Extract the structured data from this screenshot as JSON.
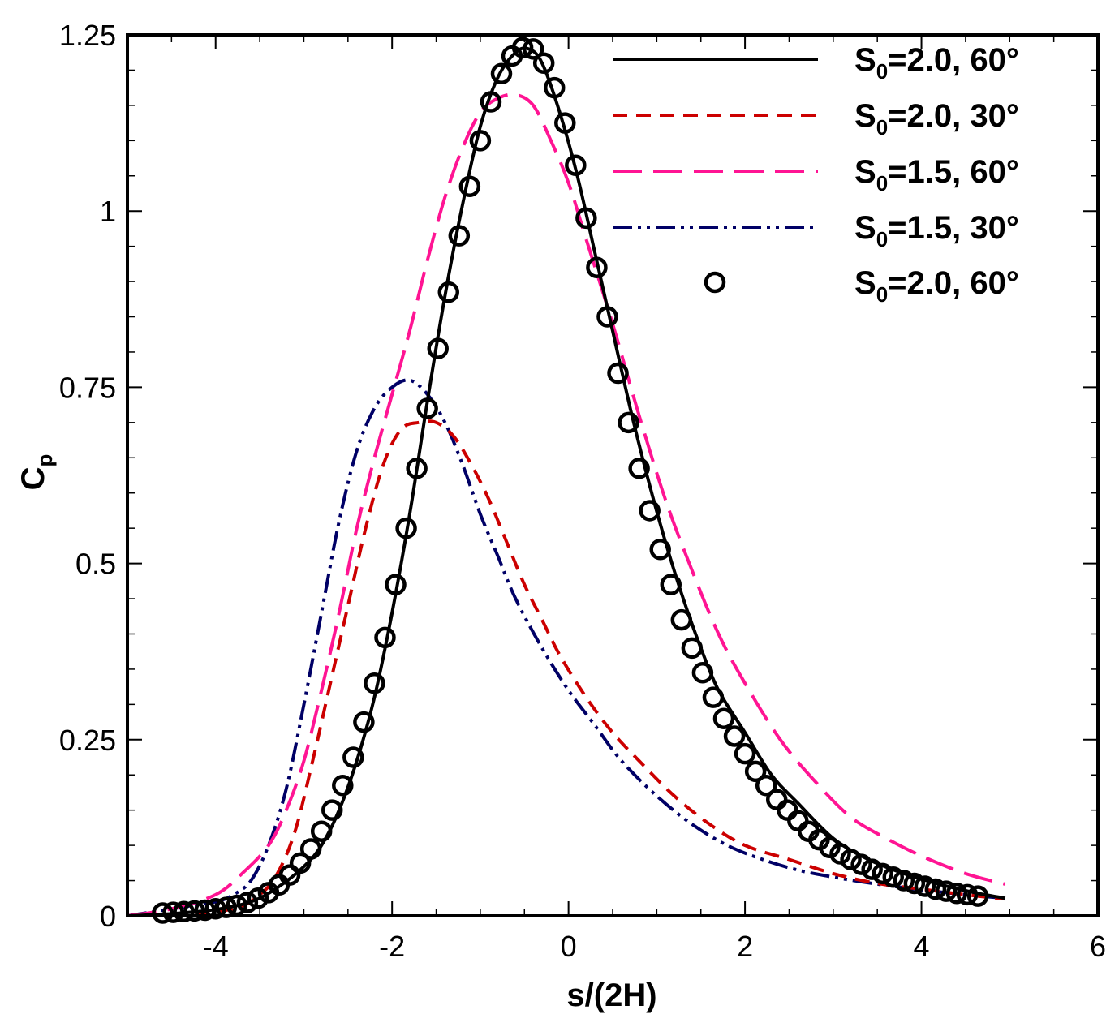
{
  "chart_data": {
    "type": "line",
    "title": "",
    "xlabel": "s/(2H)",
    "ylabel": {
      "main": "C",
      "sub": "p"
    },
    "xlim": [
      -5,
      6
    ],
    "ylim": [
      0,
      1.25
    ],
    "xticks": [
      -4,
      -2,
      0,
      2,
      4,
      6
    ],
    "xtick_labels": [
      "-4",
      "-2",
      "0",
      "2",
      "4",
      "6"
    ],
    "yticks": [
      0,
      0.25,
      0.5,
      0.75,
      1,
      1.25
    ],
    "ytick_labels": [
      "0",
      "0.25",
      "0.5",
      "0.75",
      "1",
      "1.25"
    ],
    "grid": false,
    "legend_position": "top-right",
    "series": [
      {
        "name": "S0=2.0, 60° (line)",
        "label": {
          "pre": "S",
          "sub": "0",
          "post": "=2.0, 60°"
        },
        "style": "solid",
        "color": "#000000",
        "x": [
          -5.0,
          -4.5,
          -4.0,
          -3.6,
          -3.3,
          -3.0,
          -2.8,
          -2.6,
          -2.4,
          -2.2,
          -2.0,
          -1.8,
          -1.6,
          -1.4,
          -1.2,
          -1.0,
          -0.8,
          -0.6,
          -0.45,
          -0.3,
          -0.1,
          0.1,
          0.3,
          0.5,
          0.7,
          0.9,
          1.1,
          1.3,
          1.5,
          1.7,
          2.0,
          2.3,
          2.6,
          3.0,
          3.4,
          3.8,
          4.2,
          4.6,
          4.95
        ],
        "y": [
          0.0,
          0.003,
          0.009,
          0.02,
          0.04,
          0.07,
          0.1,
          0.15,
          0.22,
          0.31,
          0.43,
          0.57,
          0.73,
          0.88,
          1.01,
          1.12,
          1.19,
          1.225,
          1.23,
          1.21,
          1.14,
          1.05,
          0.94,
          0.83,
          0.72,
          0.62,
          0.53,
          0.45,
          0.38,
          0.32,
          0.26,
          0.2,
          0.16,
          0.11,
          0.08,
          0.06,
          0.045,
          0.033,
          0.025
        ]
      },
      {
        "name": "S0=2.0, 30°",
        "label": {
          "pre": "S",
          "sub": "0",
          "post": "=2.0, 30°"
        },
        "style": "dashed",
        "color": "#cc0000",
        "x": [
          -4.5,
          -3.8,
          -3.5,
          -3.3,
          -3.1,
          -2.9,
          -2.7,
          -2.5,
          -2.3,
          -2.1,
          -1.9,
          -1.7,
          -1.5,
          -1.3,
          -1.1,
          -0.9,
          -0.7,
          -0.5,
          -0.3,
          -0.1,
          0.2,
          0.5,
          0.8,
          1.2,
          1.6,
          2.0,
          2.5,
          3.0,
          3.5,
          4.0,
          4.5,
          4.95
        ],
        "y": [
          0.0,
          0.01,
          0.03,
          0.06,
          0.12,
          0.22,
          0.33,
          0.44,
          0.55,
          0.64,
          0.69,
          0.7,
          0.7,
          0.68,
          0.64,
          0.59,
          0.53,
          0.47,
          0.42,
          0.37,
          0.31,
          0.26,
          0.22,
          0.17,
          0.13,
          0.1,
          0.08,
          0.06,
          0.046,
          0.038,
          0.03,
          0.024
        ]
      },
      {
        "name": "S0=1.5, 60°",
        "label": {
          "pre": "S",
          "sub": "0",
          "post": "=1.5, 60°"
        },
        "style": "longdash",
        "color": "#ff1493",
        "x": [
          -5.0,
          -4.5,
          -4.0,
          -3.7,
          -3.4,
          -3.2,
          -3.0,
          -2.8,
          -2.6,
          -2.4,
          -2.2,
          -2.0,
          -1.8,
          -1.6,
          -1.4,
          -1.2,
          -1.0,
          -0.8,
          -0.6,
          -0.4,
          -0.2,
          0.0,
          0.2,
          0.5,
          0.8,
          1.1,
          1.4,
          1.7,
          2.0,
          2.4,
          2.8,
          3.2,
          3.6,
          4.0,
          4.5,
          4.95
        ],
        "y": [
          0.0,
          0.01,
          0.03,
          0.06,
          0.1,
          0.15,
          0.22,
          0.32,
          0.43,
          0.55,
          0.65,
          0.74,
          0.83,
          0.93,
          1.02,
          1.09,
          1.14,
          1.16,
          1.165,
          1.15,
          1.1,
          1.04,
          0.96,
          0.84,
          0.71,
          0.59,
          0.49,
          0.4,
          0.33,
          0.25,
          0.19,
          0.14,
          0.11,
          0.085,
          0.06,
          0.045
        ]
      },
      {
        "name": "S0=1.5, 30°",
        "label": {
          "pre": "S",
          "sub": "0",
          "post": "=1.5, 30°"
        },
        "style": "dashdotdot",
        "color": "#000066",
        "x": [
          -5.0,
          -4.5,
          -4.0,
          -3.8,
          -3.6,
          -3.4,
          -3.2,
          -3.0,
          -2.8,
          -2.6,
          -2.4,
          -2.2,
          -2.0,
          -1.8,
          -1.6,
          -1.4,
          -1.2,
          -1.0,
          -0.8,
          -0.6,
          -0.3,
          0.0,
          0.3,
          0.6,
          1.0,
          1.4,
          1.8,
          2.2,
          2.6,
          3.0,
          3.5,
          4.0,
          4.5,
          4.95
        ],
        "y": [
          0.0,
          0.01,
          0.02,
          0.03,
          0.05,
          0.1,
          0.18,
          0.3,
          0.43,
          0.56,
          0.66,
          0.72,
          0.75,
          0.76,
          0.74,
          0.7,
          0.64,
          0.57,
          0.51,
          0.45,
          0.38,
          0.32,
          0.27,
          0.22,
          0.17,
          0.13,
          0.1,
          0.08,
          0.065,
          0.055,
          0.045,
          0.037,
          0.03,
          0.025
        ]
      },
      {
        "name": "S0=2.0, 60° (symbols)",
        "label": {
          "pre": "S",
          "sub": "0",
          "post": "=2.0, 60°"
        },
        "style": "circles",
        "color": "#000000",
        "x": [
          -4.6,
          -4.48,
          -4.36,
          -4.24,
          -4.12,
          -4.0,
          -3.88,
          -3.76,
          -3.64,
          -3.52,
          -3.4,
          -3.28,
          -3.16,
          -3.04,
          -2.92,
          -2.8,
          -2.68,
          -2.56,
          -2.44,
          -2.32,
          -2.2,
          -2.08,
          -1.96,
          -1.84,
          -1.72,
          -1.6,
          -1.48,
          -1.36,
          -1.24,
          -1.12,
          -1.0,
          -0.88,
          -0.76,
          -0.64,
          -0.52,
          -0.4,
          -0.28,
          -0.16,
          -0.04,
          0.08,
          0.2,
          0.32,
          0.44,
          0.56,
          0.68,
          0.8,
          0.92,
          1.04,
          1.16,
          1.28,
          1.4,
          1.52,
          1.64,
          1.76,
          1.88,
          2.0,
          2.12,
          2.24,
          2.36,
          2.48,
          2.6,
          2.72,
          2.84,
          2.96,
          3.08,
          3.2,
          3.32,
          3.44,
          3.56,
          3.68,
          3.8,
          3.92,
          4.04,
          4.16,
          4.28,
          4.4,
          4.52,
          4.64
        ],
        "y": [
          0.004,
          0.005,
          0.006,
          0.007,
          0.008,
          0.01,
          0.012,
          0.015,
          0.019,
          0.025,
          0.033,
          0.044,
          0.058,
          0.075,
          0.095,
          0.12,
          0.15,
          0.185,
          0.225,
          0.275,
          0.33,
          0.395,
          0.47,
          0.55,
          0.635,
          0.72,
          0.805,
          0.885,
          0.965,
          1.035,
          1.1,
          1.155,
          1.195,
          1.22,
          1.232,
          1.23,
          1.21,
          1.175,
          1.125,
          1.065,
          0.99,
          0.92,
          0.85,
          0.77,
          0.7,
          0.635,
          0.575,
          0.52,
          0.47,
          0.42,
          0.38,
          0.345,
          0.31,
          0.28,
          0.255,
          0.23,
          0.205,
          0.185,
          0.165,
          0.15,
          0.135,
          0.12,
          0.108,
          0.097,
          0.088,
          0.08,
          0.073,
          0.066,
          0.06,
          0.055,
          0.05,
          0.046,
          0.042,
          0.038,
          0.035,
          0.032,
          0.03,
          0.028
        ]
      }
    ]
  }
}
